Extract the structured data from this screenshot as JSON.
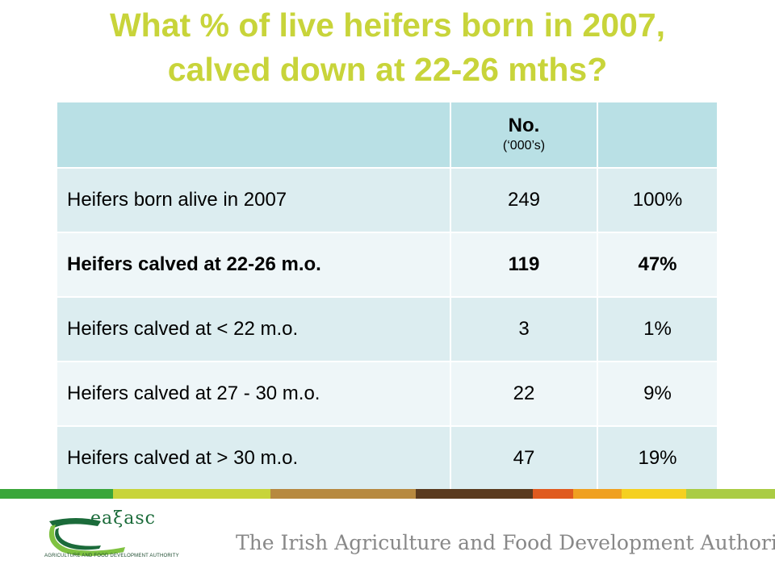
{
  "title": {
    "line1": "What % of live heifers born in 2007,",
    "line2": "calved down at 22-26 mths?",
    "color": "#c8d43a"
  },
  "table": {
    "headers": [
      "",
      "No.",
      ""
    ],
    "header_sub": "(‘000’s)",
    "rows": [
      {
        "label": "Heifers born alive in 2007",
        "number": "249",
        "percent": "100%",
        "bold": false
      },
      {
        "label": "Heifers calved at 22-26 m.o.",
        "number": "119",
        "percent": "47%",
        "bold": true
      },
      {
        "label": "Heifers calved at < 22 m.o.",
        "number": "3",
        "percent": "1%",
        "bold": false
      },
      {
        "label": "Heifers calved at 27 - 30 m.o.",
        "number": "22",
        "percent": "9%",
        "bold": false
      },
      {
        "label": "Heifers calved at > 30 m.o.",
        "number": "47",
        "percent": "19%",
        "bold": false
      }
    ]
  },
  "footer": {
    "logo_word": "eaξasc",
    "logo_sub": "Agriculture and Food Development Authority",
    "tagline": "The Irish Agriculture and Food Development Authority",
    "stripe_colors": [
      "#3aa63a",
      "#7fc241",
      "#c8d43a",
      "#e8c04a",
      "#b7893f",
      "#8a5a2e",
      "#5a3a1e",
      "#e05a1e",
      "#f0a020",
      "#f5d020",
      "#aacc44"
    ]
  }
}
